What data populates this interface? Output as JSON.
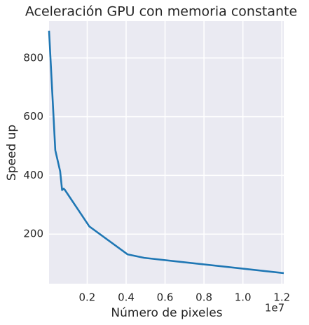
{
  "chart_data": {
    "type": "line",
    "title": "Aceleración GPU con memoria constante",
    "x_label": "Número de pixeles",
    "y_label": "Speed up",
    "x_offset_label": "1e7",
    "x": [
      0.004,
      0.036,
      0.061,
      0.071,
      0.079,
      0.086,
      0.211,
      0.407,
      0.493,
      1.21
    ],
    "series": [
      {
        "name": "Speed up",
        "color": "#1f77b4",
        "values": [
          893,
          486,
          414,
          350,
          355,
          350,
          226,
          131,
          119,
          67
        ]
      }
    ],
    "xlim": [
      0.004,
      1.21
    ],
    "ylim": [
      31,
      926
    ],
    "xticks": [
      0.2,
      0.4,
      0.6,
      0.8,
      {
        "value": 1.0,
        "label": "1.0"
      },
      1.2
    ],
    "yticks": [
      200,
      400,
      600,
      800
    ],
    "grid": true
  }
}
